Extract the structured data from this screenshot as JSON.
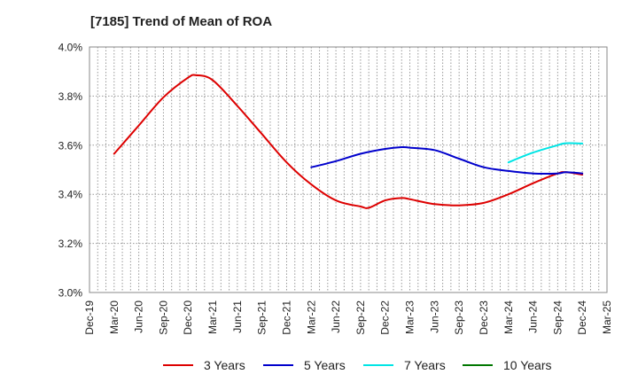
{
  "title": "[7185]  Trend of Mean of ROA",
  "chart_data": {
    "type": "line",
    "title": "[7185]  Trend of Mean of ROA",
    "xlabel": "",
    "ylabel": "",
    "x_ticks": [
      "Dec-19",
      "Mar-20",
      "Jun-20",
      "Sep-20",
      "Dec-20",
      "Mar-21",
      "Jun-21",
      "Sep-21",
      "Dec-21",
      "Mar-22",
      "Jun-22",
      "Sep-22",
      "Dec-22",
      "Mar-23",
      "Jun-23",
      "Sep-23",
      "Dec-23",
      "Mar-24",
      "Jun-24",
      "Sep-24",
      "Dec-24",
      "Mar-25"
    ],
    "y_ticks": [
      "3.0%",
      "3.2%",
      "3.4%",
      "3.6%",
      "3.8%",
      "4.0%"
    ],
    "ylim": [
      3.0,
      4.0
    ],
    "grid": true,
    "legend_position": "bottom",
    "series": [
      {
        "name": "3 Years",
        "color": "#dd0000",
        "points": [
          [
            "Mar-20",
            3.565
          ],
          [
            "Jun-20",
            3.68
          ],
          [
            "Sep-20",
            3.795
          ],
          [
            "Dec-20",
            3.875
          ],
          [
            "Jan-21",
            3.885
          ],
          [
            "Mar-21",
            3.865
          ],
          [
            "Jun-21",
            3.76
          ],
          [
            "Sep-21",
            3.645
          ],
          [
            "Dec-21",
            3.53
          ],
          [
            "Mar-22",
            3.44
          ],
          [
            "Jun-22",
            3.375
          ],
          [
            "Sep-22",
            3.35
          ],
          [
            "Oct-22",
            3.345
          ],
          [
            "Dec-22",
            3.375
          ],
          [
            "Feb-23",
            3.385
          ],
          [
            "Mar-23",
            3.38
          ],
          [
            "Jun-23",
            3.36
          ],
          [
            "Sep-23",
            3.355
          ],
          [
            "Dec-23",
            3.365
          ],
          [
            "Mar-24",
            3.4
          ],
          [
            "Jun-24",
            3.445
          ],
          [
            "Sep-24",
            3.485
          ],
          [
            "Oct-24",
            3.49
          ],
          [
            "Dec-24",
            3.48
          ]
        ]
      },
      {
        "name": "5 Years",
        "color": "#0000cc",
        "points": [
          [
            "Mar-22",
            3.51
          ],
          [
            "Jun-22",
            3.535
          ],
          [
            "Sep-22",
            3.565
          ],
          [
            "Dec-22",
            3.585
          ],
          [
            "Feb-23",
            3.592
          ],
          [
            "Mar-23",
            3.59
          ],
          [
            "Jun-23",
            3.58
          ],
          [
            "Sep-23",
            3.545
          ],
          [
            "Dec-23",
            3.51
          ],
          [
            "Mar-24",
            3.495
          ],
          [
            "Jun-24",
            3.485
          ],
          [
            "Sep-24",
            3.485
          ],
          [
            "Oct-24",
            3.49
          ],
          [
            "Dec-24",
            3.485
          ]
        ]
      },
      {
        "name": "7 Years",
        "color": "#00e5e5",
        "points": [
          [
            "Mar-24",
            3.53
          ],
          [
            "Jun-24",
            3.57
          ],
          [
            "Sep-24",
            3.6
          ],
          [
            "Oct-24",
            3.608
          ],
          [
            "Dec-24",
            3.607
          ]
        ]
      },
      {
        "name": "10 Years",
        "color": "#007700",
        "points": []
      }
    ]
  }
}
